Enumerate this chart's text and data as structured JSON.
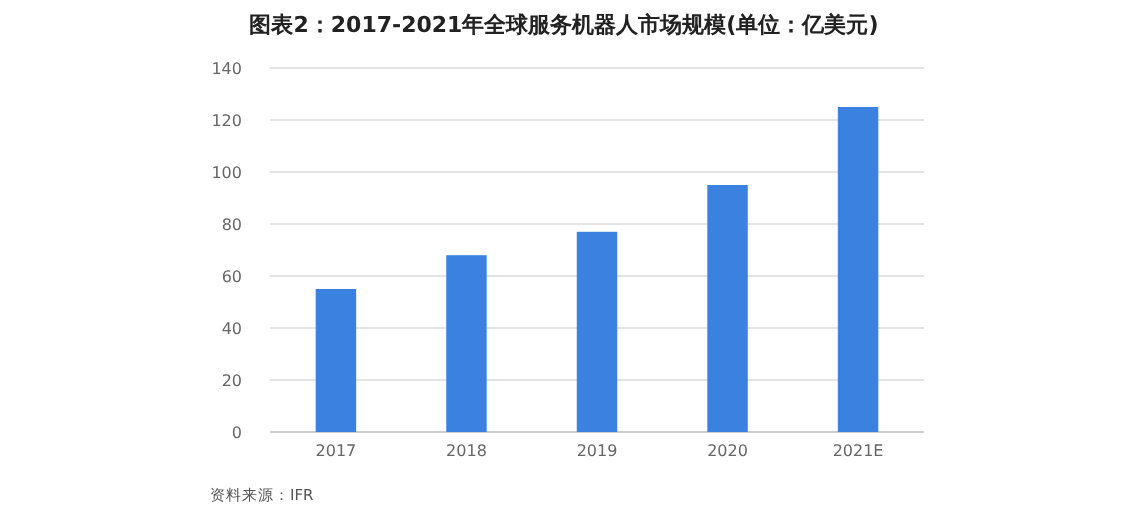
{
  "chart_data": {
    "type": "bar",
    "title": "图表2：2017-2021年全球服务机器人市场规模(单位：亿美元)",
    "categories": [
      "2017",
      "2018",
      "2019",
      "2020",
      "2021E"
    ],
    "values": [
      55,
      68,
      77,
      95,
      125
    ],
    "color": "#3b82e0",
    "ylim": [
      0,
      140
    ],
    "yticks": [
      0,
      20,
      40,
      60,
      80,
      100,
      120,
      140
    ],
    "grid": "y",
    "annotations": [
      "资料来源：IFR"
    ]
  }
}
